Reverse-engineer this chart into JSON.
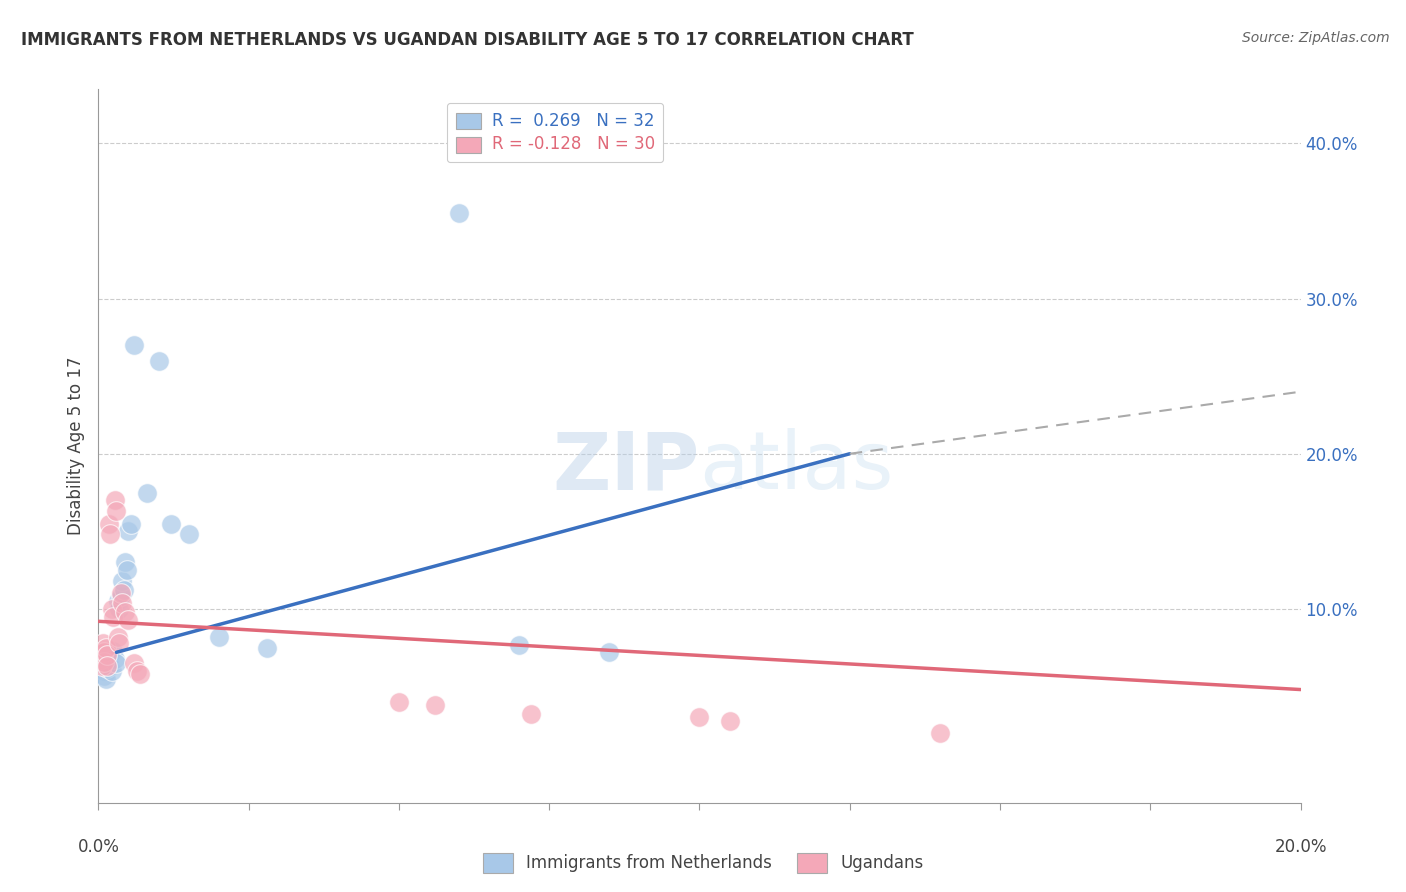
{
  "title": "IMMIGRANTS FROM NETHERLANDS VS UGANDAN DISABILITY AGE 5 TO 17 CORRELATION CHART",
  "source": "Source: ZipAtlas.com",
  "ylabel": "Disability Age 5 to 17",
  "y_ticks": [
    0.0,
    0.1,
    0.2,
    0.3,
    0.4
  ],
  "y_tick_labels": [
    "",
    "10.0%",
    "20.0%",
    "30.0%",
    "40.0%"
  ],
  "xlim": [
    0.0,
    0.2
  ],
  "ylim": [
    -0.025,
    0.435
  ],
  "legend_r_blue": "R =  0.269",
  "legend_n_blue": "N = 32",
  "legend_r_pink": "R = -0.128",
  "legend_n_pink": "N = 30",
  "blue_scatter_color": "#a8c8e8",
  "pink_scatter_color": "#f4a8b8",
  "blue_line_color": "#3a70c0",
  "pink_line_color": "#e06878",
  "dashed_line_color": "#aaaaaa",
  "watermark_color": "#c8dff0",
  "blue_points": [
    [
      0.0008,
      0.063
    ],
    [
      0.001,
      0.06
    ],
    [
      0.001,
      0.057
    ],
    [
      0.0012,
      0.055
    ],
    [
      0.0015,
      0.068
    ],
    [
      0.0015,
      0.062
    ],
    [
      0.0018,
      0.065
    ],
    [
      0.002,
      0.07
    ],
    [
      0.002,
      0.063
    ],
    [
      0.0022,
      0.06
    ],
    [
      0.0025,
      0.073
    ],
    [
      0.0028,
      0.068
    ],
    [
      0.003,
      0.065
    ],
    [
      0.0032,
      0.105
    ],
    [
      0.0035,
      0.1
    ],
    [
      0.0038,
      0.108
    ],
    [
      0.004,
      0.118
    ],
    [
      0.0042,
      0.112
    ],
    [
      0.0045,
      0.13
    ],
    [
      0.0048,
      0.125
    ],
    [
      0.005,
      0.15
    ],
    [
      0.0055,
      0.155
    ],
    [
      0.006,
      0.27
    ],
    [
      0.008,
      0.175
    ],
    [
      0.01,
      0.26
    ],
    [
      0.012,
      0.155
    ],
    [
      0.015,
      0.148
    ],
    [
      0.02,
      0.082
    ],
    [
      0.028,
      0.075
    ],
    [
      0.07,
      0.077
    ],
    [
      0.085,
      0.072
    ],
    [
      0.06,
      0.355
    ]
  ],
  "pink_points": [
    [
      0.0003,
      0.072
    ],
    [
      0.0005,
      0.068
    ],
    [
      0.0006,
      0.063
    ],
    [
      0.0008,
      0.078
    ],
    [
      0.0009,
      0.072
    ],
    [
      0.001,
      0.066
    ],
    [
      0.0012,
      0.075
    ],
    [
      0.0014,
      0.07
    ],
    [
      0.0015,
      0.063
    ],
    [
      0.0018,
      0.155
    ],
    [
      0.002,
      0.148
    ],
    [
      0.0022,
      0.1
    ],
    [
      0.0025,
      0.095
    ],
    [
      0.0028,
      0.17
    ],
    [
      0.003,
      0.163
    ],
    [
      0.0032,
      0.082
    ],
    [
      0.0035,
      0.078
    ],
    [
      0.0038,
      0.11
    ],
    [
      0.004,
      0.104
    ],
    [
      0.0045,
      0.098
    ],
    [
      0.005,
      0.093
    ],
    [
      0.006,
      0.065
    ],
    [
      0.0065,
      0.06
    ],
    [
      0.007,
      0.058
    ],
    [
      0.05,
      0.04
    ],
    [
      0.056,
      0.038
    ],
    [
      0.072,
      0.032
    ],
    [
      0.1,
      0.03
    ],
    [
      0.105,
      0.028
    ],
    [
      0.14,
      0.02
    ]
  ],
  "blue_trendline_solid": [
    [
      0.003,
      0.072
    ],
    [
      0.125,
      0.2
    ]
  ],
  "blue_trendline_dashed": [
    [
      0.125,
      0.2
    ],
    [
      0.2,
      0.24
    ]
  ],
  "pink_trendline": [
    [
      0.0,
      0.092
    ],
    [
      0.2,
      0.048
    ]
  ]
}
